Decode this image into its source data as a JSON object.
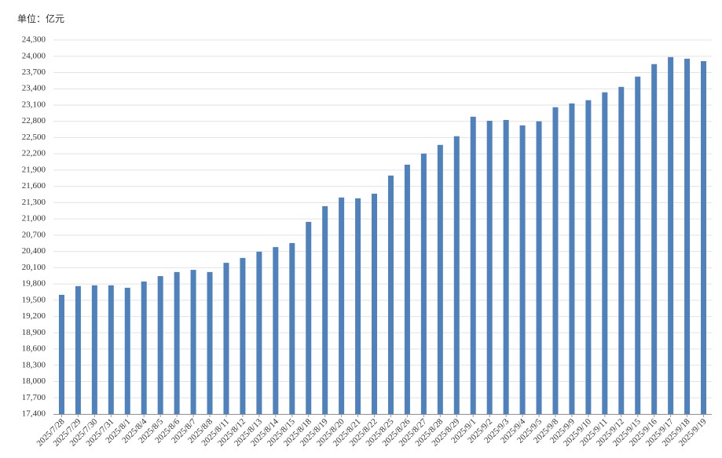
{
  "chart_data": {
    "type": "bar",
    "unit": "单位：亿元",
    "categories": [
      "2025/7/28",
      "2025/7/29",
      "2025/7/30",
      "2025/7/31",
      "2025/8/1",
      "2025/8/4",
      "2025/8/5",
      "2025/8/6",
      "2025/8/7",
      "2025/8/8",
      "2025/8/11",
      "2025/8/12",
      "2025/8/13",
      "2025/8/14",
      "2025/8/15",
      "2025/8/18",
      "2025/8/19",
      "2025/8/20",
      "2025/8/21",
      "2025/8/22",
      "2025/8/25",
      "2025/8/26",
      "2025/8/27",
      "2025/8/28",
      "2025/8/29",
      "2025/9/1",
      "2025/9/2",
      "2025/9/3",
      "2025/9/4",
      "2025/9/5",
      "2025/9/8",
      "2025/9/9",
      "2025/9/10",
      "2025/9/11",
      "2025/9/12",
      "2025/9/15",
      "2025/9/16",
      "2025/9/17",
      "2025/9/18",
      "2025/9/19"
    ],
    "values": [
      19600,
      19760,
      19775,
      19775,
      19730,
      19845,
      19945,
      20020,
      20060,
      20020,
      20190,
      20280,
      20395,
      20480,
      20555,
      20945,
      21235,
      21395,
      21380,
      21465,
      21800,
      22000,
      22205,
      22365,
      22525,
      22885,
      22810,
      22825,
      22725,
      22800,
      23060,
      23130,
      23190,
      23335,
      23435,
      23625,
      23855,
      23985,
      23955,
      23910
    ],
    "color": "#4f81bd",
    "ylim": [
      17400,
      24300
    ],
    "yticks": [
      {
        "value": 17400,
        "label": "17,400"
      },
      {
        "value": 17700,
        "label": "17,700"
      },
      {
        "value": 18000,
        "label": "18,000"
      },
      {
        "value": 18300,
        "label": "18,300"
      },
      {
        "value": 18600,
        "label": "18,600"
      },
      {
        "value": 18900,
        "label": "18,900"
      },
      {
        "value": 19200,
        "label": "19,200"
      },
      {
        "value": 19500,
        "label": "19,500"
      },
      {
        "value": 19800,
        "label": "19,800"
      },
      {
        "value": 20100,
        "label": "20,100"
      },
      {
        "value": 20400,
        "label": "20,400"
      },
      {
        "value": 20700,
        "label": "20,700"
      },
      {
        "value": 21000,
        "label": "21,000"
      },
      {
        "value": 21300,
        "label": "21,300"
      },
      {
        "value": 21600,
        "label": "21,600"
      },
      {
        "value": 21900,
        "label": "21,900"
      },
      {
        "value": 22200,
        "label": "22,200"
      },
      {
        "value": 22500,
        "label": "22,500"
      },
      {
        "value": 22800,
        "label": "22,800"
      },
      {
        "value": 23100,
        "label": "23,100"
      },
      {
        "value": 23400,
        "label": "23,400"
      },
      {
        "value": 23700,
        "label": "23,700"
      },
      {
        "value": 24000,
        "label": "24,000"
      },
      {
        "value": 24300,
        "label": "24,300"
      }
    ],
    "grid": true
  }
}
